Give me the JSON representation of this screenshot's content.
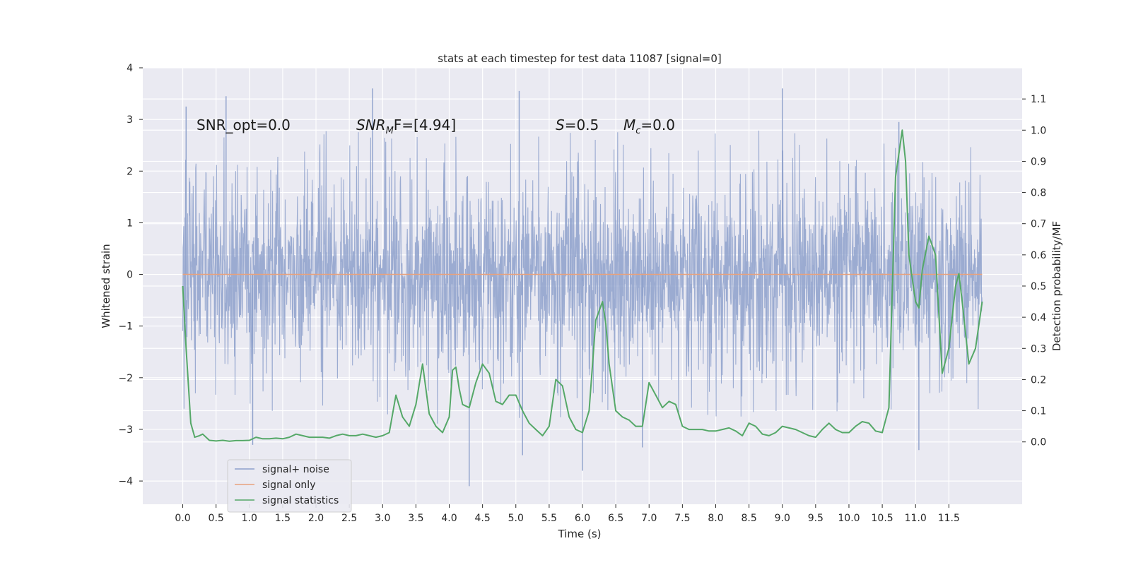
{
  "chart_data": {
    "type": "line",
    "title": "stats at each timestep for test data 11087 [signal=0]",
    "xlabel": "Time (s)",
    "ylabel": "Whitened strain",
    "ylabel_right": "Detection probability/MF",
    "xlim": [
      -0.6,
      12.6
    ],
    "ylim": [
      -4.45,
      4.0
    ],
    "ylim_right": [
      -0.2,
      1.2
    ],
    "x_ticks": [
      0.0,
      0.5,
      1.0,
      1.5,
      2.0,
      2.5,
      3.0,
      3.5,
      4.0,
      4.5,
      5.0,
      5.5,
      6.0,
      6.5,
      7.0,
      7.5,
      8.0,
      8.5,
      9.0,
      9.5,
      10.0,
      10.5,
      11.0,
      11.5
    ],
    "x_tick_labels": [
      "0.0",
      "0.5",
      "1.0",
      "1.5",
      "2.0",
      "2.5",
      "3.0",
      "3.5",
      "4.0",
      "4.5",
      "5.0",
      "5.5",
      "6.0",
      "6.5",
      "7.0",
      "7.5",
      "8.0",
      "8.5",
      "9.0",
      "9.5",
      "10.0",
      "10.5",
      "11.0",
      "11.5"
    ],
    "y_ticks": [
      -4,
      -3,
      -2,
      -1,
      0,
      1,
      2,
      3,
      4
    ],
    "y_tick_labels": [
      "−4",
      "−3",
      "−2",
      "−1",
      "0",
      "1",
      "2",
      "3",
      "4"
    ],
    "y_right_ticks": [
      0.0,
      0.1,
      0.2,
      0.3,
      0.4,
      0.5,
      0.6,
      0.7,
      0.8,
      0.9,
      1.0,
      1.1
    ],
    "y_right_tick_labels": [
      "0.0",
      "0.1",
      "0.2",
      "0.3",
      "0.4",
      "0.5",
      "0.6",
      "0.7",
      "0.8",
      "0.9",
      "1.0",
      "1.1"
    ],
    "grid": true,
    "legend_position": "lower-left",
    "series": [
      {
        "name": "signal+ noise",
        "axis": "left",
        "color": "#8da0cb",
        "description_values": "dense whitened-noise trace spanning 0.0-12.0 s, mostly within -1.5 to 1.3, peaks to about +3.6 and down to about -4.1",
        "x_range": [
          0.0,
          12.0
        ],
        "envelope": {
          "core_low": -1.5,
          "core_high": 1.3,
          "max": 3.6,
          "min": -4.1
        }
      },
      {
        "name": "signal only",
        "axis": "left",
        "color": "#e8a17c",
        "x": [
          0.0,
          12.0
        ],
        "y": [
          0.0,
          0.0
        ]
      },
      {
        "name": "signal statistics",
        "axis": "right",
        "color": "#55a868",
        "x": [
          0.0,
          0.05,
          0.12,
          0.18,
          0.25,
          0.3,
          0.4,
          0.5,
          0.6,
          0.7,
          0.8,
          0.9,
          1.0,
          1.1,
          1.2,
          1.3,
          1.4,
          1.5,
          1.6,
          1.7,
          1.8,
          1.9,
          2.0,
          2.1,
          2.2,
          2.3,
          2.4,
          2.5,
          2.6,
          2.7,
          2.8,
          2.9,
          3.0,
          3.1,
          3.2,
          3.3,
          3.4,
          3.5,
          3.6,
          3.7,
          3.8,
          3.9,
          4.0,
          4.05,
          4.1,
          4.15,
          4.2,
          4.3,
          4.4,
          4.5,
          4.6,
          4.7,
          4.8,
          4.9,
          5.0,
          5.1,
          5.2,
          5.3,
          5.4,
          5.5,
          5.6,
          5.7,
          5.8,
          5.9,
          6.0,
          6.1,
          6.2,
          6.3,
          6.35,
          6.4,
          6.5,
          6.6,
          6.7,
          6.8,
          6.9,
          7.0,
          7.1,
          7.2,
          7.3,
          7.4,
          7.5,
          7.6,
          7.7,
          7.8,
          7.9,
          8.0,
          8.1,
          8.2,
          8.3,
          8.4,
          8.5,
          8.6,
          8.7,
          8.8,
          8.9,
          9.0,
          9.1,
          9.2,
          9.3,
          9.4,
          9.5,
          9.6,
          9.7,
          9.8,
          9.9,
          10.0,
          10.1,
          10.2,
          10.3,
          10.4,
          10.5,
          10.6,
          10.7,
          10.8,
          10.85,
          10.9,
          11.0,
          11.05,
          11.1,
          11.2,
          11.3,
          11.4,
          11.5,
          11.6,
          11.65,
          11.7,
          11.8,
          11.9,
          12.0
        ],
        "y": [
          0.5,
          0.3,
          0.06,
          0.015,
          0.02,
          0.025,
          0.005,
          0.003,
          0.005,
          0.002,
          0.004,
          0.004,
          0.005,
          0.015,
          0.01,
          0.01,
          0.012,
          0.01,
          0.015,
          0.025,
          0.02,
          0.015,
          0.015,
          0.015,
          0.012,
          0.02,
          0.025,
          0.02,
          0.02,
          0.025,
          0.02,
          0.015,
          0.02,
          0.03,
          0.15,
          0.08,
          0.05,
          0.12,
          0.25,
          0.09,
          0.05,
          0.03,
          0.08,
          0.23,
          0.24,
          0.17,
          0.12,
          0.11,
          0.19,
          0.25,
          0.22,
          0.13,
          0.12,
          0.15,
          0.15,
          0.1,
          0.06,
          0.04,
          0.02,
          0.05,
          0.2,
          0.18,
          0.08,
          0.04,
          0.03,
          0.1,
          0.39,
          0.45,
          0.38,
          0.25,
          0.1,
          0.08,
          0.07,
          0.05,
          0.05,
          0.19,
          0.15,
          0.11,
          0.13,
          0.12,
          0.05,
          0.04,
          0.04,
          0.04,
          0.035,
          0.035,
          0.04,
          0.045,
          0.035,
          0.02,
          0.06,
          0.05,
          0.025,
          0.02,
          0.03,
          0.05,
          0.045,
          0.04,
          0.03,
          0.02,
          0.015,
          0.04,
          0.06,
          0.04,
          0.03,
          0.03,
          0.05,
          0.065,
          0.06,
          0.035,
          0.03,
          0.11,
          0.85,
          1.0,
          0.9,
          0.6,
          0.45,
          0.43,
          0.55,
          0.66,
          0.6,
          0.22,
          0.3,
          0.5,
          0.54,
          0.45,
          0.25,
          0.3,
          0.45
        ]
      }
    ],
    "annotations": [
      {
        "id": "snr_opt",
        "text": "SNR_opt=0.0"
      },
      {
        "id": "snr_mf_label",
        "text": "SNR",
        "subscript": "M",
        "suffix": "F=[4.94]"
      },
      {
        "id": "s_value",
        "italic": "S",
        "suffix": "=0.5"
      },
      {
        "id": "mc_value",
        "italic": "M",
        "subscript": "c",
        "suffix": "=0.0"
      }
    ]
  }
}
